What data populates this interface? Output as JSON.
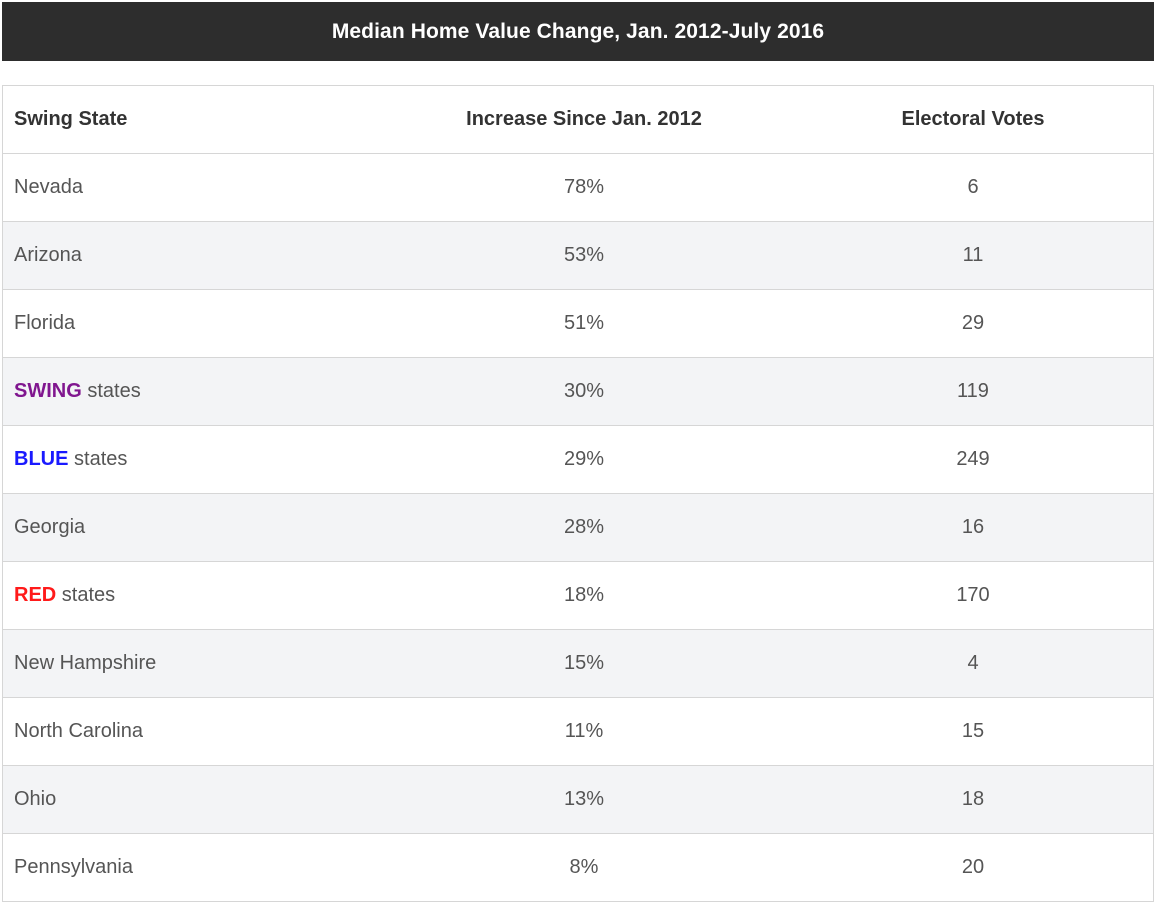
{
  "chart_data": {
    "type": "table",
    "title": "Median Home Value Change, Jan. 2012-July 2016",
    "columns": [
      "Swing State",
      "Increase Since Jan. 2012",
      "Electoral Votes"
    ],
    "rows": [
      {
        "state": "Nevada",
        "increase": "78%",
        "votes": "6"
      },
      {
        "state_highlight": "SWING",
        "state_rest": " states",
        "highlight_color": "#7b1f8c",
        "increase": "30%",
        "votes": "119",
        "_placeholder": true
      }
    ]
  },
  "table": {
    "title": "Median Home Value Change, Jan. 2012-July 2016",
    "headers": {
      "state": "Swing State",
      "increase": "Increase Since Jan. 2012",
      "votes": "Electoral Votes"
    },
    "rows": [
      {
        "state": "Nevada",
        "increase": "78%",
        "votes": "6"
      },
      {
        "state": "Arizona",
        "increase": "53%",
        "votes": "11"
      },
      {
        "state": "Florida",
        "increase": "51%",
        "votes": "29"
      },
      {
        "highlight": "SWING",
        "rest": " states",
        "color": "#80168f",
        "increase": "30%",
        "votes": "119"
      },
      {
        "highlight": "BLUE",
        "rest": " states",
        "color": "#1a1aff",
        "increase": "29%",
        "votes": "249"
      },
      {
        "state": "Georgia",
        "increase": "28%",
        "votes": "16"
      },
      {
        "highlight": "RED",
        "rest": " states",
        "color": "#ff1a1a",
        "increase": "18%",
        "votes": "170"
      },
      {
        "state": "New Hampshire",
        "increase": "15%",
        "votes": "4"
      },
      {
        "state": "North Carolina",
        "increase": "11%",
        "votes": "15"
      },
      {
        "state": "Ohio",
        "increase": "13%",
        "votes": "18"
      },
      {
        "state": "Pennsylvania",
        "increase": "8%",
        "votes": "20"
      }
    ]
  }
}
